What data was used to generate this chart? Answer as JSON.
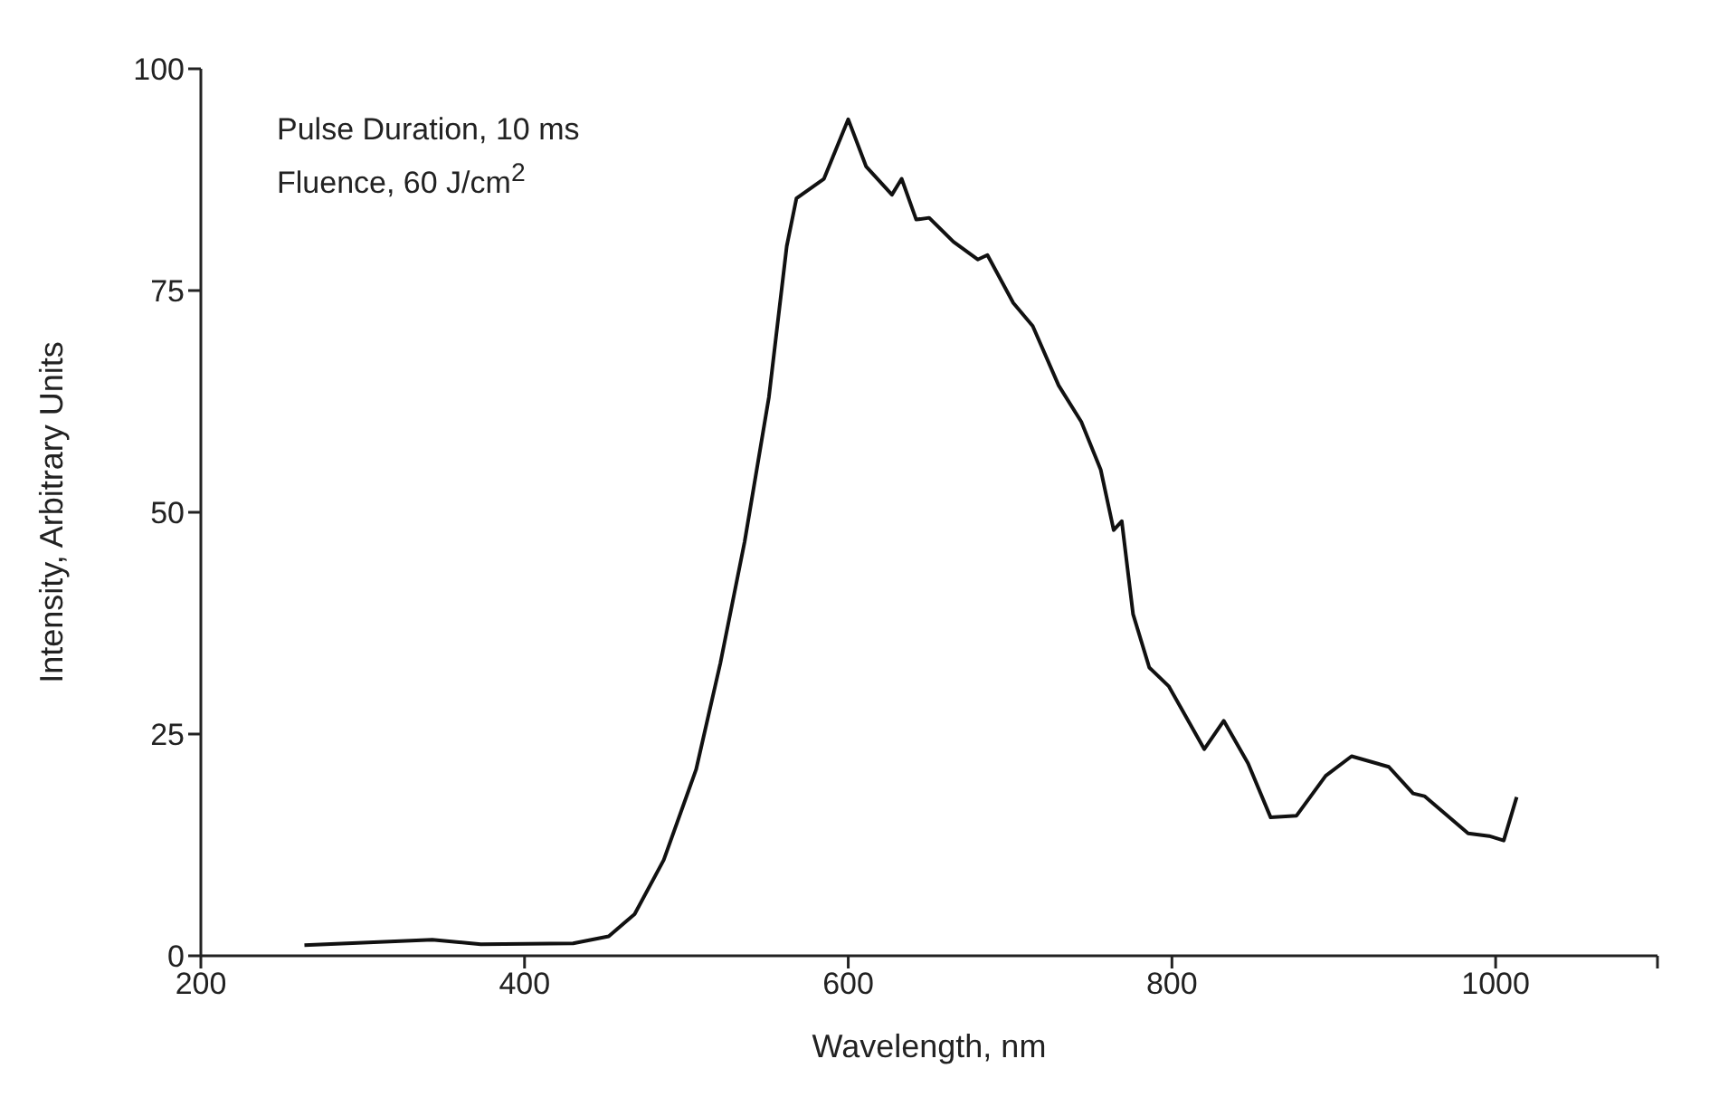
{
  "chart_data": {
    "type": "line",
    "xlabel": "Wavelength, nm",
    "ylabel": "Intensity, Arbitrary Units",
    "annotations": [
      "Pulse Duration, 10 ms",
      "Fluence, 60 J/cm$^{2}$"
    ],
    "xlim": [
      200,
      1100
    ],
    "xticks": [
      200,
      400,
      600,
      800,
      1000,
      {
        "value": 1100,
        "label": null
      }
    ],
    "ylim": [
      0,
      100
    ],
    "yticks": [
      0,
      25,
      50,
      75,
      100
    ],
    "marker": "none",
    "line_style": "solid",
    "series": [
      {
        "color": "#111111",
        "x": [
          264,
          343,
          373,
          430,
          452,
          468,
          486,
          506,
          521,
          536,
          551,
          562,
          568,
          585,
          600,
          611,
          627,
          633,
          642,
          650,
          665,
          680,
          686,
          702,
          714,
          730,
          744,
          756,
          764,
          769,
          776,
          786,
          798,
          820,
          832,
          847,
          861,
          877,
          895,
          911,
          934,
          949,
          956,
          983,
          996,
          1005,
          1013
        ],
        "values": [
          1.2,
          1.8,
          1.3,
          1.4,
          2.2,
          4.7,
          10.8,
          21,
          33,
          46.7,
          63,
          80,
          85.4,
          87.6,
          94.3,
          89,
          85.8,
          87.6,
          83,
          83.2,
          80.5,
          78.5,
          79,
          73.6,
          71,
          64.3,
          60.2,
          54.8,
          48,
          49,
          38.5,
          32.5,
          30.4,
          23.3,
          26.5,
          21.7,
          15.6,
          15.8,
          20.3,
          22.5,
          21.3,
          18.3,
          18,
          13.8,
          13.5,
          13,
          17.9
        ]
      }
    ]
  }
}
